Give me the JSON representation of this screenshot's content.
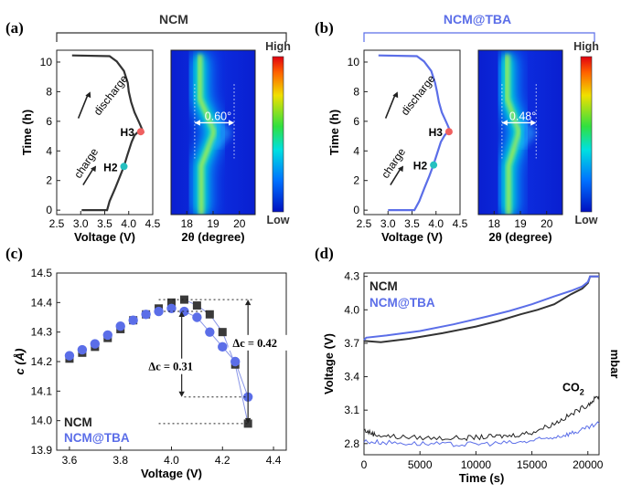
{
  "panel_labels": {
    "a": "(a)",
    "b": "(b)",
    "c": "(c)",
    "d": "(d)"
  },
  "colors": {
    "ncm": "#333333",
    "tba": "#5b6ee8",
    "cold": "#0018c8",
    "hot": "#e8160c"
  },
  "top_titles": {
    "a": "NCM",
    "b": "NCM@TBA"
  },
  "colorbar": {
    "high": "High",
    "low": "Low"
  },
  "chart_data": [
    {
      "id": "a-curve",
      "type": "line",
      "title": "NCM",
      "xlabel": "Voltage (V)",
      "ylabel": "Time (h)",
      "xlim": [
        2.5,
        4.5
      ],
      "ylim": [
        -0.3,
        10.8
      ],
      "xticks": [
        "2.5",
        "3.0",
        "3.5",
        "4.0",
        "4.5"
      ],
      "yticks": [
        "0",
        "2",
        "4",
        "6",
        "8",
        "10"
      ],
      "series": [
        {
          "name": "NCM",
          "x": [
            3.02,
            3.55,
            3.6,
            3.72,
            3.82,
            3.9,
            3.97,
            4.06,
            4.12,
            4.2,
            4.3,
            4.22,
            4.12,
            4.05,
            4.0,
            3.98,
            3.9,
            3.75,
            3.6,
            2.82
          ],
          "y": [
            0,
            0,
            0.6,
            1.5,
            2.3,
            2.95,
            3.7,
            4.6,
            5.05,
            5.3,
            5.3,
            5.9,
            6.6,
            7.3,
            8.0,
            8.6,
            9.4,
            10.05,
            10.4,
            10.45
          ]
        }
      ],
      "points": [
        {
          "label": "H2",
          "x": 3.9,
          "y": 2.95,
          "color": "#25c0c0"
        },
        {
          "label": "H3",
          "x": 4.25,
          "y": 5.3,
          "color": "#f06060"
        }
      ],
      "annotations": {
        "discharge": "discharge",
        "charge": "charge"
      }
    },
    {
      "id": "a-heat",
      "type": "heatmap",
      "xlabel": "2θ (degree)",
      "xlim": [
        17.4,
        20.6
      ],
      "xticks": [
        "18",
        "19",
        "20"
      ],
      "annotation": "0.60°",
      "peak_shift": [
        18.55,
        19.05,
        18.5
      ],
      "arrow_from": 18.3,
      "arrow_to": 19.8
    },
    {
      "id": "b-curve",
      "type": "line",
      "title": "NCM@TBA",
      "xlabel": "Voltage (V)",
      "ylabel": "Time (h)",
      "xlim": [
        2.5,
        4.5
      ],
      "ylim": [
        -0.3,
        10.8
      ],
      "xticks": [
        "2.5",
        "3.0",
        "3.5",
        "4.0",
        "4.5"
      ],
      "yticks": [
        "0",
        "2",
        "4",
        "6",
        "8",
        "10"
      ],
      "series": [
        {
          "name": "NCM@TBA",
          "x": [
            3.0,
            3.55,
            3.65,
            3.76,
            3.86,
            3.94,
            4.01,
            4.1,
            4.18,
            4.25,
            4.3,
            4.22,
            4.12,
            4.06,
            4.02,
            3.98,
            3.9,
            3.75,
            3.6,
            2.8
          ],
          "y": [
            0,
            0,
            0.6,
            1.5,
            2.3,
            3.0,
            3.7,
            4.6,
            5.05,
            5.3,
            5.3,
            5.9,
            6.6,
            7.3,
            8.0,
            8.6,
            9.4,
            10.05,
            10.4,
            10.45
          ]
        }
      ],
      "points": [
        {
          "label": "H2",
          "x": 3.95,
          "y": 3.05,
          "color": "#25c0c0"
        },
        {
          "label": "H3",
          "x": 4.27,
          "y": 5.3,
          "color": "#f06060"
        }
      ],
      "annotations": {
        "discharge": "discharge",
        "charge": "charge"
      }
    },
    {
      "id": "b-heat",
      "type": "heatmap",
      "xlabel": "2θ (degree)",
      "xlim": [
        17.4,
        20.6
      ],
      "xticks": [
        "18",
        "19",
        "20"
      ],
      "annotation": "0.48°",
      "peak_shift": [
        18.55,
        18.95,
        18.5
      ],
      "arrow_from": 18.3,
      "arrow_to": 19.6
    },
    {
      "id": "c",
      "type": "scatter",
      "xlabel": "Voltage (V)",
      "ylabel": "c (Å)",
      "xlim": [
        3.55,
        4.45
      ],
      "ylim": [
        13.9,
        14.5
      ],
      "xticks": [
        "3.6",
        "3.8",
        "4.0",
        "4.2",
        "4.4"
      ],
      "yticks": [
        "13.9",
        "14.0",
        "14.1",
        "14.2",
        "14.3",
        "14.4",
        "14.5"
      ],
      "series": [
        {
          "name": "NCM",
          "marker": "square",
          "x": [
            3.6,
            3.65,
            3.7,
            3.75,
            3.8,
            3.85,
            3.9,
            3.95,
            4.0,
            4.05,
            4.1,
            4.15,
            4.2,
            4.25,
            4.3
          ],
          "y": [
            14.21,
            14.23,
            14.25,
            14.28,
            14.31,
            14.34,
            14.36,
            14.38,
            14.4,
            14.41,
            14.39,
            14.36,
            14.3,
            14.19,
            13.99
          ]
        },
        {
          "name": "NCM@TBA",
          "marker": "circle",
          "x": [
            3.6,
            3.65,
            3.7,
            3.75,
            3.8,
            3.85,
            3.9,
            3.95,
            4.0,
            4.05,
            4.1,
            4.15,
            4.2,
            4.25,
            4.3
          ],
          "y": [
            14.22,
            14.24,
            14.26,
            14.29,
            14.32,
            14.34,
            14.36,
            14.37,
            14.38,
            14.37,
            14.35,
            14.3,
            14.25,
            14.2,
            14.08
          ]
        }
      ],
      "annotations": [
        {
          "text": "Δc = 0.31"
        },
        {
          "text": "Δc = 0.42"
        }
      ],
      "legend": [
        "NCM",
        "NCM@TBA"
      ]
    },
    {
      "id": "d",
      "type": "line",
      "xlabel": "Time (s)",
      "ylabel": "Voltage (V)",
      "y2label": "mbar",
      "xlim": [
        0,
        21000
      ],
      "ylim": [
        2.7,
        4.33
      ],
      "xticks": [
        "0",
        "5000",
        "10000",
        "15000",
        "20000"
      ],
      "yticks": [
        "2.8",
        "3.1",
        "3.4",
        "3.7",
        "4.0",
        "4.3"
      ],
      "series": [
        {
          "name": "NCM",
          "x": [
            0,
            200,
            1500,
            4000,
            7000,
            10000,
            12000,
            14000,
            15500,
            17000,
            18500,
            19500,
            20000,
            20200,
            21000
          ],
          "y": [
            3.72,
            3.72,
            3.71,
            3.74,
            3.79,
            3.85,
            3.9,
            3.96,
            4.0,
            4.05,
            4.14,
            4.19,
            4.24,
            4.3,
            4.3
          ]
        },
        {
          "name": "NCM@TBA",
          "x": [
            0,
            200,
            2000,
            5000,
            8000,
            11000,
            13000,
            15000,
            17000,
            18500,
            19500,
            20000,
            20200,
            21000
          ],
          "y": [
            3.73,
            3.75,
            3.77,
            3.81,
            3.87,
            3.94,
            3.99,
            4.05,
            4.12,
            4.17,
            4.21,
            4.25,
            4.3,
            4.3
          ]
        },
        {
          "name": "CO2 NCM",
          "x": [
            0,
            1000,
            3000,
            6000,
            9000,
            11000,
            13000,
            15000,
            17000,
            18500,
            20000,
            21000
          ],
          "y": [
            2.92,
            2.88,
            2.86,
            2.85,
            2.85,
            2.86,
            2.87,
            2.9,
            2.98,
            3.06,
            3.15,
            3.23
          ]
        },
        {
          "name": "CO2 NCM@TBA",
          "x": [
            0,
            2000,
            5000,
            8000,
            11000,
            14000,
            16000,
            18000,
            19500,
            21000
          ],
          "y": [
            2.82,
            2.81,
            2.8,
            2.79,
            2.8,
            2.81,
            2.84,
            2.88,
            2.92,
            2.98
          ]
        }
      ],
      "co2_label": "CO",
      "co2_sub": "2",
      "legend": [
        "NCM",
        "NCM@TBA"
      ]
    }
  ]
}
